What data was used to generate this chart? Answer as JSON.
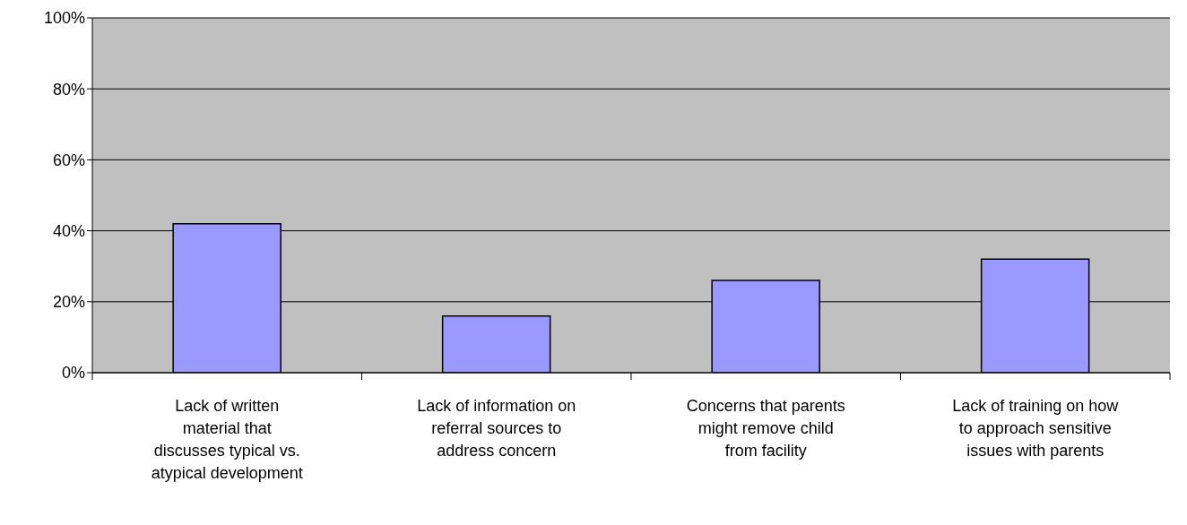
{
  "chart_data": {
    "type": "bar",
    "categories": [
      "Lack of written\nmaterial that\ndiscusses typical vs.\natypical development",
      "Lack of information on\nreferral sources to\naddress concern",
      "Concerns that parents\nmight remove child\nfrom facility",
      "Lack of training on how\nto approach sensitive\nissues with parents"
    ],
    "values": [
      42,
      16,
      26,
      32
    ],
    "color": "#9999ff",
    "ylim": [
      0,
      100
    ],
    "yticks": [
      {
        "value": 0,
        "label": "0%"
      },
      {
        "value": 20,
        "label": "20%"
      },
      {
        "value": 40,
        "label": "40%"
      },
      {
        "value": 60,
        "label": "60%"
      },
      {
        "value": 80,
        "label": "80%"
      },
      {
        "value": 100,
        "label": "100%"
      }
    ],
    "grid": "y",
    "legend": false
  }
}
